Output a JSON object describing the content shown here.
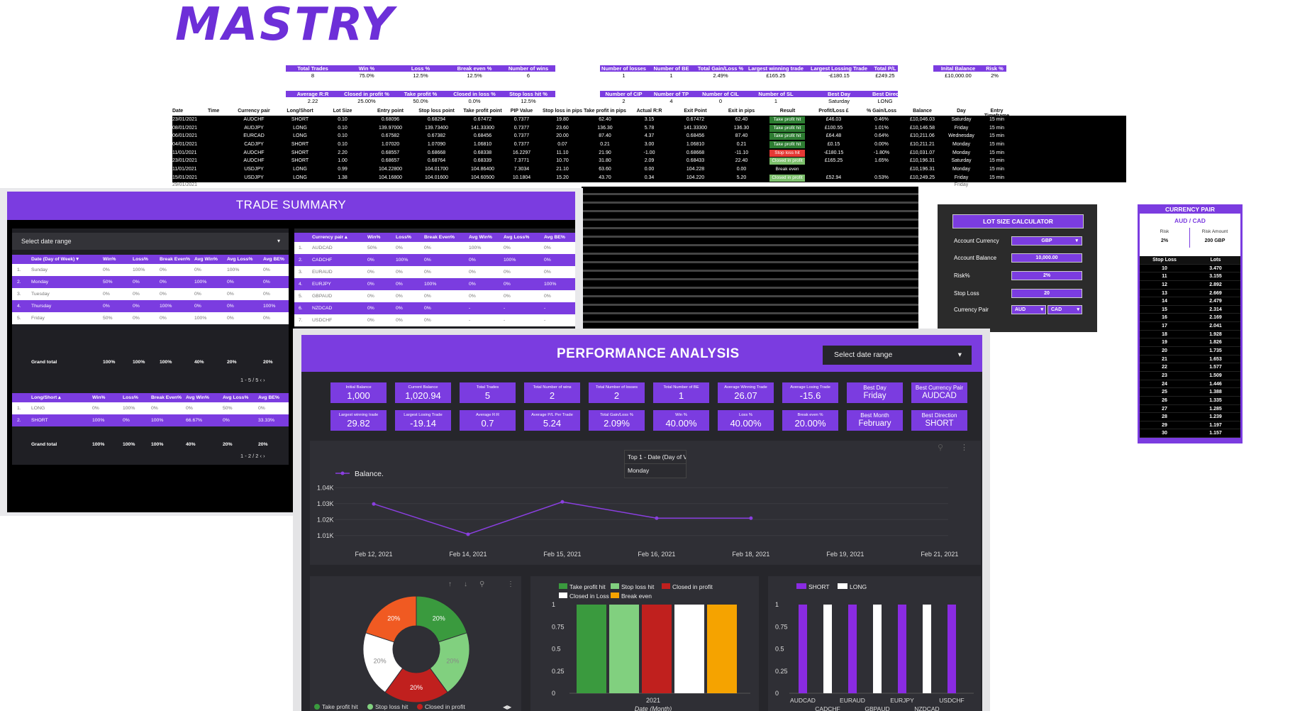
{
  "logo": "MASTRY",
  "sheet": {
    "summary_groups": [
      {
        "headers": [
          "Total Trades",
          "Win %",
          "Loss %",
          "Break even %",
          "Number of wins"
        ],
        "values": [
          "8",
          "75.0%",
          "12.5%",
          "12.5%",
          "6"
        ]
      },
      {
        "headers": [
          "Average R:R",
          "Closed in profit %",
          "Take profit %",
          "Closed in loss %",
          "Stop loss hit %"
        ],
        "values": [
          "2.22",
          "25.00%",
          "50.0%",
          "0.0%",
          "12.5%"
        ]
      },
      {
        "headers": [
          "Number of losses",
          "Number of BE",
          "Total Gain/Loss %",
          "Largest winning trade",
          "Largest Lossing Trade",
          "Total P/L"
        ],
        "values": [
          "1",
          "1",
          "2.49%",
          "£165.25",
          "-£180.15",
          "£249.25"
        ]
      },
      {
        "headers": [
          "Number of CIP",
          "Number of TP",
          "Number of CIL",
          "Number of SL",
          "Best Day",
          "Best Direction"
        ],
        "values": [
          "2",
          "4",
          "0",
          "1",
          "Saturday",
          "LONG"
        ]
      },
      {
        "headers": [
          "Inital Balance",
          "Risk %"
        ],
        "values": [
          "£10,000.00",
          "2%"
        ]
      }
    ],
    "columns": [
      "Date",
      "Time",
      "Currency pair",
      "Long/Short",
      "Lot Size",
      "Entry point",
      "Stop loss point",
      "Take profit point",
      "PIP Value",
      "Stop loss in pips",
      "Take profit in pips",
      "Actual R:R",
      "Exit Point",
      "Exit in pips",
      "Result",
      "Profit/Loss £",
      "% Gain/Loss",
      "Balance",
      "Day",
      "Entry Timeframe"
    ],
    "rows": [
      [
        "23/01/2021",
        "",
        "AUDCHF",
        "SHORT",
        "0.10",
        "0.68096",
        "0.68294",
        "0.67472",
        "0.7377",
        "19.80",
        "62.40",
        "3.15",
        "0.67472",
        "62.40",
        "Take profit hit",
        "£46.03",
        "0.46%",
        "£10,046.03",
        "Saturday",
        "15 min"
      ],
      [
        "08/01/2021",
        "",
        "AUDJPY",
        "LONG",
        "0.10",
        "139.97000",
        "139.73400",
        "141.33300",
        "0.7377",
        "23.60",
        "136.30",
        "5.78",
        "141.33300",
        "136.30",
        "Take profit hit",
        "£100.55",
        "1.01%",
        "£10,146.58",
        "Friday",
        "15 min"
      ],
      [
        "06/01/2021",
        "",
        "EURCAD",
        "LONG",
        "0.10",
        "0.67582",
        "0.67382",
        "0.68456",
        "0.7377",
        "20.00",
        "87.40",
        "4.37",
        "0.68456",
        "87.40",
        "Take profit hit",
        "£64.48",
        "0.64%",
        "£10,211.06",
        "Wednesday",
        "15 min"
      ],
      [
        "04/01/2021",
        "",
        "CADJPY",
        "SHORT",
        "0.10",
        "1.07020",
        "1.07090",
        "1.06810",
        "0.7377",
        "0.07",
        "0.21",
        "3.00",
        "1.06810",
        "0.21",
        "Take profit hit",
        "£0.15",
        "0.00%",
        "£10,211.21",
        "Monday",
        "15 min"
      ],
      [
        "11/01/2021",
        "",
        "AUDCHF",
        "SHORT",
        "2.20",
        "0.68557",
        "0.68668",
        "0.68338",
        "16.2297",
        "11.10",
        "21.90",
        "-1.00",
        "0.68668",
        "-11.10",
        "Stop loss hit",
        "-£180.15",
        "-1.80%",
        "£10,031.07",
        "Monday",
        "15 min"
      ],
      [
        "23/01/2021",
        "",
        "AUDCHF",
        "SHORT",
        "1.00",
        "0.68657",
        "0.68764",
        "0.68339",
        "7.3771",
        "10.70",
        "31.80",
        "2.09",
        "0.68433",
        "22.40",
        "Closed in profit",
        "£165.25",
        "1.65%",
        "£10,196.31",
        "Saturday",
        "15 min"
      ],
      [
        "11/01/2021",
        "",
        "USDJPY",
        "LONG",
        "0.99",
        "104.22800",
        "104.01700",
        "104.86400",
        "7.3034",
        "21.10",
        "63.60",
        "0.00",
        "104.228",
        "0.00",
        "Break even",
        "",
        "",
        "£10,196.31",
        "Monday",
        "15 min"
      ],
      [
        "15/01/2021",
        "",
        "USDJPY",
        "LONG",
        "1.38",
        "104.16800",
        "104.01600",
        "104.60500",
        "10.1804",
        "15.20",
        "43.70",
        "0.34",
        "104.220",
        "5.20",
        "Closed in profit",
        "£52.94",
        "0.53%",
        "£10,249.25",
        "Friday",
        "15 min"
      ]
    ],
    "partial_row": {
      "date": "29/01/2021",
      "day": "Friday"
    }
  },
  "trade_summary": {
    "title": "TRADE SUMMARY",
    "date_select": "Select date range",
    "day_table": {
      "headers": [
        "Date (Day of Week) ▾",
        "Win%",
        "Loss%",
        "Break Even%",
        "Avg Win%",
        "Avg Loss%",
        "Avg BE%"
      ],
      "rows": [
        [
          "1.",
          "Sunday",
          "0%",
          "100%",
          "0%",
          "0%",
          "100%",
          "0%"
        ],
        [
          "2.",
          "Monday",
          "50%",
          "0%",
          "0%",
          "100%",
          "0%",
          "0%"
        ],
        [
          "3.",
          "Tuesday",
          "0%",
          "0%",
          "0%",
          "0%",
          "0%",
          "0%"
        ],
        [
          "4.",
          "Thursday",
          "0%",
          "0%",
          "100%",
          "0%",
          "0%",
          "100%"
        ],
        [
          "5.",
          "Friday",
          "50%",
          "0%",
          "0%",
          "100%",
          "0%",
          "0%"
        ]
      ],
      "total": [
        "Grand total",
        "100%",
        "100%",
        "100%",
        "40%",
        "20%",
        "20%"
      ],
      "pager": "1 - 5 / 5"
    },
    "ls_table": {
      "headers": [
        "Long/Short ▴",
        "Win%",
        "Loss%",
        "Break Even%",
        "Avg Win%",
        "Avg Loss%",
        "Avg BE%"
      ],
      "rows": [
        [
          "1.",
          "LONG",
          "0%",
          "100%",
          "0%",
          "0%",
          "50%",
          "0%"
        ],
        [
          "2.",
          "SHORT",
          "100%",
          "0%",
          "100%",
          "66.67%",
          "0%",
          "33.33%"
        ]
      ],
      "total": [
        "Grand total",
        "100%",
        "100%",
        "100%",
        "40%",
        "20%",
        "20%"
      ],
      "pager": "1 - 2 / 2"
    },
    "pair_table": {
      "headers": [
        "Currency pair ▴",
        "Win%",
        "Loss%",
        "Break Even%",
        "Avg Win%",
        "Avg Loss%",
        "Avg BE%"
      ],
      "rows": [
        [
          "1.",
          "AUDCAD",
          "50%",
          "0%",
          "0%",
          "100%",
          "0%",
          "0%"
        ],
        [
          "2.",
          "CADCHF",
          "0%",
          "100%",
          "0%",
          "0%",
          "100%",
          "0%"
        ],
        [
          "3.",
          "EURAUD",
          "0%",
          "0%",
          "0%",
          "0%",
          "0%",
          "0%"
        ],
        [
          "4.",
          "EURJPY",
          "0%",
          "0%",
          "100%",
          "0%",
          "0%",
          "100%"
        ],
        [
          "5.",
          "GBPAUD",
          "0%",
          "0%",
          "0%",
          "0%",
          "0%",
          "0%"
        ],
        [
          "6.",
          "NZDCAD",
          "0%",
          "0%",
          "0%",
          "-",
          "-",
          "-"
        ],
        [
          "7.",
          "USDCHF",
          "0%",
          "0%",
          "0%",
          "-",
          "-",
          "-"
        ]
      ]
    }
  },
  "performance": {
    "title": "PERFORMANCE ANALYSIS",
    "date_select": "Select date range",
    "kpis_row1": [
      {
        "label": "Initial Balance",
        "value": "1,000"
      },
      {
        "label": "Current Balance",
        "value": "1,020.94"
      },
      {
        "label": "Total Trades",
        "value": "5"
      },
      {
        "label": "Total Number of wins",
        "value": "2"
      },
      {
        "label": "Total Number of losses",
        "value": "2"
      },
      {
        "label": "Total Number of BE",
        "value": "1"
      },
      {
        "label": "Average Winning Trade",
        "value": "26.07"
      },
      {
        "label": "Average Losing Trade",
        "value": "-15.6"
      },
      {
        "label": "Best Day",
        "value": "Friday"
      },
      {
        "label": "Best Currency Pair",
        "value": "AUDCAD"
      }
    ],
    "kpis_row2": [
      {
        "label": "Largest winning trade",
        "value": "29.82"
      },
      {
        "label": "Largest Losing Trade",
        "value": "-19.14"
      },
      {
        "label": "Average R:R",
        "value": "0.7"
      },
      {
        "label": "Average P/L Per Trade",
        "value": "5.24"
      },
      {
        "label": "Total Gain/Loss %",
        "value": "2.09%"
      },
      {
        "label": "Win %",
        "value": "40.00%"
      },
      {
        "label": "Loss %",
        "value": "40.00%"
      },
      {
        "label": "Break even %",
        "value": "20.00%"
      },
      {
        "label": "Best Month",
        "value": "February"
      },
      {
        "label": "Best Direction",
        "value": "SHORT"
      }
    ],
    "tooltip": {
      "title": "Top 1 - Date (Day of V",
      "value": "Monday"
    }
  },
  "chart_data": [
    {
      "type": "line",
      "series": [
        {
          "name": "Balance.",
          "x": [
            "Feb 12, 2021",
            "Feb 14, 2021",
            "Feb 15, 2021",
            "Feb 16, 2021",
            "Feb 18, 2021"
          ],
          "values": [
            1029.8,
            1010.8,
            1031.1,
            1020.9,
            1020.9
          ]
        }
      ],
      "xticks": [
        "Feb 12, 2021",
        "Feb 14, 2021",
        "Feb 15, 2021",
        "Feb 16, 2021",
        "Feb 18, 2021",
        "Feb 19, 2021",
        "Feb 21, 2021"
      ],
      "yticks": [
        "1.01K",
        "1.02K",
        "1.03K",
        "1.04K"
      ],
      "ylim": [
        1005,
        1045
      ],
      "color": "#8a3fe0"
    },
    {
      "type": "pie",
      "labels": [
        "Take profit hit",
        "Stop loss hit",
        "Closed in profit",
        "Closed in Loss",
        "Break even"
      ],
      "values": [
        20,
        20,
        20,
        20,
        20
      ],
      "slice_labels": [
        "20%",
        "20%",
        "20%",
        "20%",
        "20%"
      ],
      "colors": [
        "#3a9a3e",
        "#81d07f",
        "#c0201e",
        "#ffffff",
        "#f05a22"
      ],
      "legend": [
        "Take profit hit",
        "Stop loss hit",
        "Closed in profit"
      ]
    },
    {
      "type": "bar",
      "categories": [
        "2021"
      ],
      "series": [
        {
          "name": "Take profit hit",
          "values": [
            1
          ],
          "color": "#3a9a3e"
        },
        {
          "name": "Stop loss hit",
          "values": [
            1
          ],
          "color": "#81d07f"
        },
        {
          "name": "Closed in profit",
          "values": [
            1
          ],
          "color": "#c0201e"
        },
        {
          "name": "Closed in Loss",
          "values": [
            1
          ],
          "color": "#ffffff"
        },
        {
          "name": "Break even",
          "values": [
            1
          ],
          "color": "#f5a300"
        }
      ],
      "yticks": [
        "0",
        "0.25",
        "0.5",
        "0.75",
        "1"
      ],
      "ylim": [
        0,
        1
      ],
      "xlabel": "Date (Month)"
    },
    {
      "type": "bar",
      "categories": [
        "AUDCAD",
        "CADCHF",
        "EURAUD",
        "GBPAUD",
        "EURJPY",
        "NZDCAD",
        "USDCHF"
      ],
      "series": [
        {
          "name": "SHORT",
          "values": [
            1,
            0,
            1,
            0,
            1,
            0,
            1
          ],
          "color": "#8a2be2"
        },
        {
          "name": "LONG",
          "values": [
            0,
            1,
            0,
            1,
            0,
            1,
            0
          ],
          "color": "#ffffff"
        }
      ],
      "yticks": [
        "0",
        "0.25",
        "0.5",
        "0.75",
        "1"
      ],
      "ylim": [
        0,
        1
      ]
    }
  ],
  "lot_calc": {
    "title": "LOT SIZE CALCULATOR",
    "fields": [
      {
        "label": "Account Currency",
        "value": "GBP"
      },
      {
        "label": "Account Balance",
        "value": "10,000.00"
      },
      {
        "label": "Risk%",
        "value": "2%"
      },
      {
        "label": "Stop Loss",
        "value": "20"
      }
    ],
    "pair_label": "Currency Pair",
    "pair_from": "AUD",
    "pair_to": "CAD"
  },
  "currency_pair": {
    "title": "CURRENCY PAIR",
    "pair": "AUD / CAD",
    "risk_label": "Risk",
    "risk_value": "2%",
    "amount_label": "Risk Amount",
    "amount_value": "200 GBP",
    "col_sl": "Stop Loss",
    "col_lots": "Lots",
    "rows": [
      [
        "10",
        "3.470"
      ],
      [
        "11",
        "3.155"
      ],
      [
        "12",
        "2.892"
      ],
      [
        "13",
        "2.669"
      ],
      [
        "14",
        "2.479"
      ],
      [
        "15",
        "2.314"
      ],
      [
        "16",
        "2.169"
      ],
      [
        "17",
        "2.041"
      ],
      [
        "18",
        "1.928"
      ],
      [
        "19",
        "1.826"
      ],
      [
        "20",
        "1.735"
      ],
      [
        "21",
        "1.653"
      ],
      [
        "22",
        "1.577"
      ],
      [
        "23",
        "1.509"
      ],
      [
        "24",
        "1.446"
      ],
      [
        "25",
        "1.388"
      ],
      [
        "26",
        "1.335"
      ],
      [
        "27",
        "1.285"
      ],
      [
        "28",
        "1.239"
      ],
      [
        "29",
        "1.197"
      ],
      [
        "30",
        "1.157"
      ]
    ]
  }
}
